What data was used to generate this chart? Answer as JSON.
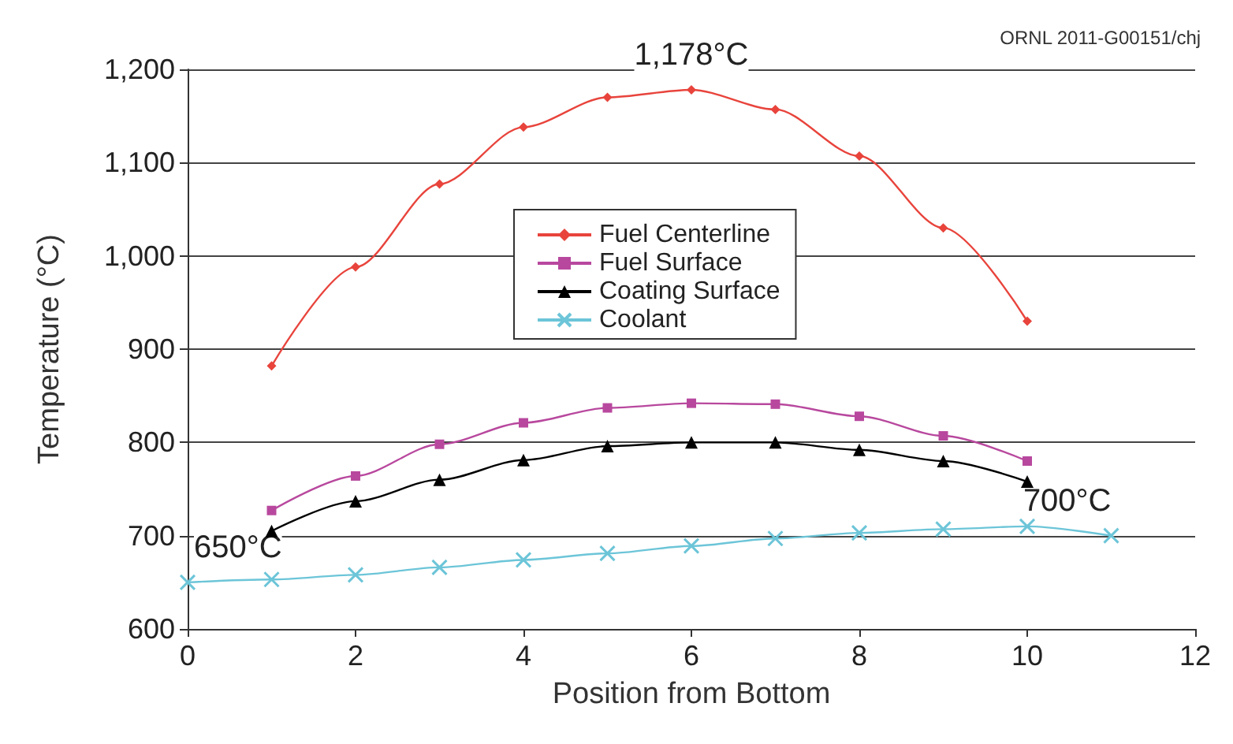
{
  "chart_data": {
    "type": "line",
    "xlabel": "Position from Bottom",
    "ylabel": "Temperature (°C)",
    "xlim": [
      0,
      12
    ],
    "xticks": [
      0,
      2,
      4,
      6,
      8,
      10,
      12
    ],
    "ylim": [
      600,
      1200
    ],
    "yticks": [
      600,
      700,
      800,
      900,
      {
        "value": 1000,
        "label": "1,000"
      },
      {
        "value": 1100,
        "label": "1,100"
      },
      {
        "value": 1200,
        "label": "1,200"
      }
    ],
    "grid": "y",
    "legend": "top",
    "series": [
      {
        "name": "Fuel Centerline",
        "color": "#e8443c",
        "marker": "diamond",
        "x": [
          1,
          2,
          3,
          4,
          5,
          6,
          7,
          8,
          9,
          10
        ],
        "values": [
          882,
          988,
          1077,
          1138,
          1170,
          1178,
          1157,
          1107,
          1030,
          930
        ]
      },
      {
        "name": "Fuel Surface",
        "color": "#b8489e",
        "marker": "square",
        "x": [
          1,
          2,
          3,
          4,
          5,
          6,
          7,
          8,
          9,
          10
        ],
        "values": [
          727,
          764,
          798,
          821,
          837,
          842,
          841,
          828,
          807,
          780
        ]
      },
      {
        "name": "Coating Surface",
        "color": "#000000",
        "marker": "triangle",
        "x": [
          1,
          2,
          3,
          4,
          5,
          6,
          7,
          8,
          9,
          10
        ],
        "values": [
          705,
          737,
          760,
          781,
          796,
          800,
          800,
          792,
          780,
          758
        ]
      },
      {
        "name": "Coolant",
        "color": "#6cc5d8",
        "marker": "cross",
        "x": [
          0,
          1,
          2,
          3,
          4,
          5,
          6,
          7,
          8,
          9,
          10,
          11
        ],
        "values": [
          650,
          653,
          658,
          666,
          674,
          681,
          689,
          697,
          703,
          707,
          710,
          700
        ]
      }
    ],
    "annotations": [
      {
        "text": "1,178°C",
        "x": 6,
        "y": 1178
      },
      {
        "text": "650°C",
        "x": 0,
        "y": 650
      },
      {
        "text": "700°C",
        "x": 11,
        "y": 700
      },
      "ORNL 2011-G00151/chj"
    ]
  }
}
